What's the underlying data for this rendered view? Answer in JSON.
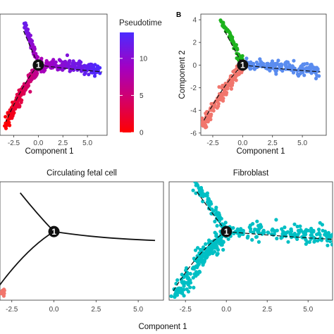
{
  "chart_data": [
    {
      "panel": "top-left",
      "type": "scatter",
      "xlabel": "Component 1",
      "ylabel": "",
      "xlim": [
        -3.5,
        7
      ],
      "ylim": [
        -6.2,
        4.5
      ],
      "x_ticks": [
        "-2.5",
        "0.0",
        "2.5",
        "5.0"
      ],
      "x_tick_values": [
        -2.5,
        0,
        2.5,
        5
      ],
      "color_by": "pseudotime",
      "colorbar": {
        "title": "Pseudotime",
        "ticks": [
          "0",
          "5",
          "10"
        ],
        "tick_values": [
          0,
          5,
          10
        ],
        "range": [
          0,
          13.5
        ],
        "colors": [
          "#ff0000",
          "#d1006e",
          "#a300c2",
          "#4b2bff"
        ]
      },
      "branch_node": {
        "label": "1",
        "x": 0,
        "y": 0
      },
      "trajectory": [
        [
          [
            -1.5,
            3.0
          ],
          [
            -0.5,
            1.0
          ],
          [
            0,
            0
          ]
        ],
        [
          [
            0,
            0
          ],
          [
            2.5,
            -0.3
          ],
          [
            6.5,
            -0.6
          ]
        ],
        [
          [
            0,
            0
          ],
          [
            -1.5,
            -1.5
          ],
          [
            -3.3,
            -5.0
          ]
        ]
      ],
      "branches": [
        {
          "from": [
            -1.5,
            3.8
          ],
          "to": [
            0,
            0
          ],
          "spread": 0.15,
          "n": 70,
          "t_from": 12,
          "t_to": 8
        },
        {
          "from": [
            0,
            0
          ],
          "to": [
            6.3,
            -0.5
          ],
          "spread": 0.25,
          "n": 170,
          "t_from": 8,
          "t_to": 13.5
        },
        {
          "from": [
            0,
            0
          ],
          "to": [
            -3.3,
            -5.2
          ],
          "spread": 0.25,
          "n": 170,
          "t_from": 7,
          "t_to": 0
        }
      ]
    },
    {
      "panel": "top-right",
      "panel_letter": "B",
      "type": "scatter",
      "xlabel": "Component 1",
      "ylabel": "Component 2",
      "xlim": [
        -3.5,
        7
      ],
      "ylim": [
        -6.2,
        4.5
      ],
      "x_ticks": [
        "-2.5",
        "0.0",
        "2.5",
        "5.0"
      ],
      "x_tick_values": [
        -2.5,
        0,
        2.5,
        5
      ],
      "y_ticks": [
        "4",
        "2",
        "0",
        "-2",
        "-4",
        "-6"
      ],
      "y_tick_values": [
        4,
        2,
        0,
        -2,
        -4,
        -6
      ],
      "color_by": "state",
      "branch_node": {
        "label": "1",
        "x": 0,
        "y": 0
      },
      "trajectory": [
        [
          [
            -1.5,
            3.0
          ],
          [
            -0.5,
            1.0
          ],
          [
            0,
            0
          ]
        ],
        [
          [
            0,
            0
          ],
          [
            2.5,
            -0.3
          ],
          [
            6.5,
            -0.6
          ]
        ],
        [
          [
            0,
            0
          ],
          [
            -1.5,
            -1.5
          ],
          [
            -3.3,
            -5.0
          ]
        ]
      ],
      "branches": [
        {
          "from": [
            -1.7,
            3.8
          ],
          "to": [
            0,
            0
          ],
          "spread": 0.15,
          "n": 70,
          "color": "#1db31d"
        },
        {
          "from": [
            0,
            0
          ],
          "to": [
            6.3,
            -0.5
          ],
          "spread": 0.25,
          "n": 170,
          "color": "#5a8cef"
        },
        {
          "from": [
            0,
            0
          ],
          "to": [
            -3.3,
            -5.2
          ],
          "spread": 0.25,
          "n": 170,
          "color": "#f1766d"
        }
      ]
    },
    {
      "panel": "bottom-left",
      "type": "scatter",
      "title": "Circulating fetal cell",
      "xlabel": "",
      "ylabel": "",
      "xlim": [
        -3.2,
        6.5
      ],
      "ylim": [
        -6.2,
        4.5
      ],
      "x_ticks": [
        "-2.5",
        "0.0",
        "2.5",
        "5.0"
      ],
      "x_tick_values": [
        -2.5,
        0,
        2.5,
        5
      ],
      "branch_node": {
        "label": "1",
        "x": 0,
        "y": 0
      },
      "trajectory": [
        [
          [
            -2.0,
            3.5
          ],
          [
            -1.0,
            1.6
          ],
          [
            0,
            0
          ]
        ],
        [
          [
            0,
            0
          ],
          [
            2.5,
            -0.6
          ],
          [
            6.0,
            -0.8
          ]
        ],
        [
          [
            0,
            0
          ],
          [
            -1.6,
            -1.5
          ],
          [
            -3.3,
            -5.0
          ]
        ]
      ],
      "branches": [
        {
          "from": [
            -3.1,
            -5.4
          ],
          "to": [
            -3.0,
            -5.7
          ],
          "spread": 0.12,
          "n": 14,
          "color": "#f1766d"
        }
      ]
    },
    {
      "panel": "bottom-right",
      "type": "scatter",
      "title": "Fibroblast",
      "xlabel": "",
      "ylabel": "",
      "xlim": [
        -3.5,
        6.5
      ],
      "ylim": [
        -6.2,
        4.5
      ],
      "x_ticks": [
        "-2.5",
        "0.0",
        "2.5",
        "5.0"
      ],
      "x_tick_values": [
        -2.5,
        0,
        2.5,
        5
      ],
      "branch_node": {
        "label": "1",
        "x": 0,
        "y": 0
      },
      "trajectory": [
        [
          [
            -1.8,
            3.6
          ],
          [
            -0.7,
            1.3
          ],
          [
            0,
            0
          ]
        ],
        [
          [
            0,
            0
          ],
          [
            3.0,
            -0.4
          ],
          [
            6.5,
            -0.7
          ]
        ],
        [
          [
            0,
            0
          ],
          [
            -1.6,
            -1.4
          ],
          [
            -3.3,
            -5.5
          ]
        ]
      ],
      "branches": [
        {
          "from": [
            -1.8,
            4.2
          ],
          "to": [
            0,
            0
          ],
          "spread": 0.18,
          "n": 80,
          "color": "#00bfc4"
        },
        {
          "from": [
            0,
            0
          ],
          "to": [
            6.5,
            -0.5
          ],
          "spread": 0.35,
          "n": 180,
          "color": "#00bfc4"
        },
        {
          "from": [
            0,
            0
          ],
          "to": [
            -3.1,
            -5.7
          ],
          "spread": 0.35,
          "n": 200,
          "color": "#00bfc4"
        }
      ]
    }
  ],
  "bottom_xlabel": "Component 1"
}
